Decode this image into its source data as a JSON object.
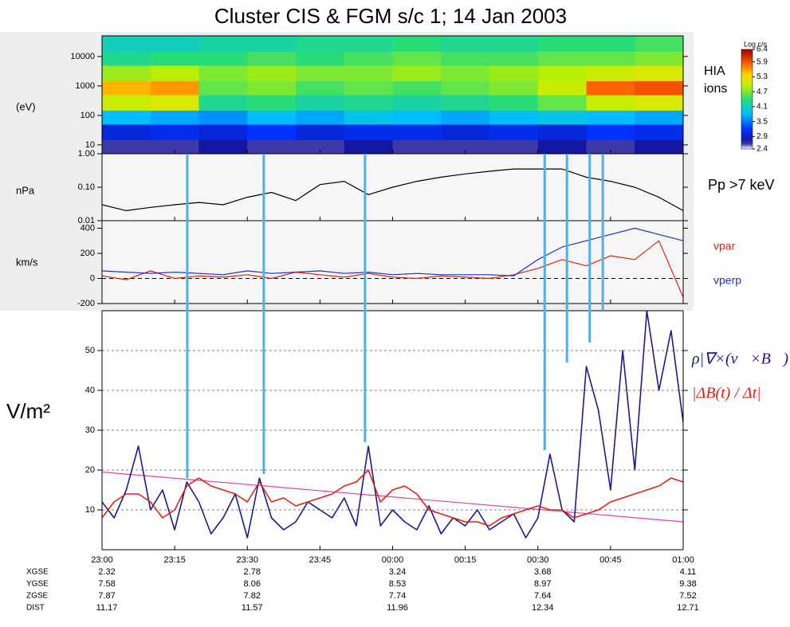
{
  "title": "Cluster CIS & FGM s/c 1; 14 Jan 2003",
  "x_axis": {
    "xlim": [
      0,
      120
    ],
    "xticks": [
      {
        "value": 0,
        "label": "23:00"
      },
      {
        "value": 15,
        "label": "23:15"
      },
      {
        "value": 30,
        "label": "23:30"
      },
      {
        "value": 45,
        "label": "23:45"
      },
      {
        "value": 60,
        "label": "00:00"
      },
      {
        "value": 75,
        "label": "00:15"
      },
      {
        "value": 90,
        "label": "00:30"
      },
      {
        "value": 105,
        "label": "00:45"
      },
      {
        "value": 120,
        "label": "01:00"
      }
    ]
  },
  "chart_data": [
    {
      "type": "heatmap",
      "ylabel": "(eV)",
      "yscale": "log",
      "ylim": [
        5,
        50000
      ],
      "yticks": [
        10,
        100,
        1000,
        10000
      ],
      "annotation": [
        "HIA",
        "ions"
      ],
      "x_edges": [
        0,
        10,
        20,
        30,
        40,
        50,
        60,
        70,
        80,
        90,
        100,
        110,
        120
      ],
      "y_edges": [
        5,
        15,
        50,
        150,
        500,
        1500,
        5000,
        15000,
        50000
      ],
      "values": [
        [
          2.6,
          2.6,
          2.7,
          2.6,
          2.6,
          2.7,
          2.6,
          2.6,
          2.6,
          2.7,
          2.6,
          2.7
        ],
        [
          3.0,
          3.1,
          3.0,
          3.2,
          3.0,
          3.1,
          3.1,
          3.0,
          3.1,
          3.0,
          3.2,
          3.1
        ],
        [
          3.8,
          3.7,
          3.6,
          3.8,
          3.7,
          3.9,
          3.8,
          3.7,
          3.8,
          3.9,
          3.8,
          3.7
        ],
        [
          5.0,
          5.1,
          4.3,
          4.4,
          4.2,
          4.3,
          4.2,
          4.3,
          4.4,
          4.6,
          5.0,
          5.1
        ],
        [
          5.5,
          5.6,
          4.6,
          4.7,
          4.5,
          4.6,
          4.5,
          4.6,
          4.7,
          5.0,
          5.8,
          5.9
        ],
        [
          4.8,
          4.9,
          4.7,
          4.8,
          4.7,
          4.7,
          4.8,
          4.7,
          4.8,
          4.9,
          5.0,
          5.1
        ],
        [
          4.3,
          4.4,
          4.4,
          4.5,
          4.4,
          4.5,
          4.6,
          4.5,
          4.5,
          4.6,
          4.6,
          4.7
        ],
        [
          4.1,
          4.1,
          4.2,
          4.2,
          4.3,
          4.3,
          4.4,
          4.3,
          4.3,
          4.4,
          4.4,
          4.5
        ]
      ],
      "colorbar": {
        "label": "Log c/s",
        "clim": [
          2.4,
          6.4
        ],
        "ticks": [
          6.4,
          5.9,
          5.3,
          4.7,
          4.1,
          3.5,
          2.9,
          2.4
        ]
      }
    },
    {
      "type": "line",
      "ylabel": "nPa",
      "yscale": "log",
      "ylim": [
        0.01,
        1
      ],
      "yticks": [
        {
          "value": 1,
          "label": "1.00"
        },
        {
          "value": 0.1,
          "label": "0.10"
        },
        {
          "value": 0.01,
          "label": "0.01"
        }
      ],
      "annotation": [
        "Pp >7 keV"
      ],
      "series": [
        {
          "color": "#000000",
          "x": [
            0,
            5,
            10,
            15,
            20,
            25,
            30,
            35,
            40,
            45,
            50,
            55,
            60,
            65,
            70,
            75,
            80,
            85,
            90,
            95,
            100,
            105,
            110,
            115,
            120
          ],
          "values": [
            0.03,
            0.02,
            0.025,
            0.03,
            0.035,
            0.03,
            0.05,
            0.07,
            0.04,
            0.12,
            0.15,
            0.06,
            0.1,
            0.15,
            0.2,
            0.25,
            0.3,
            0.35,
            0.35,
            0.35,
            0.2,
            0.15,
            0.1,
            0.05,
            0.02
          ]
        }
      ]
    },
    {
      "type": "line",
      "ylabel": "km/s",
      "ylim": [
        -200,
        460
      ],
      "yticks": [
        -200,
        0,
        200,
        400
      ],
      "reference_line": 0,
      "series": [
        {
          "name": "vpar",
          "color": "#e02010",
          "x": [
            0,
            5,
            10,
            15,
            20,
            25,
            30,
            35,
            40,
            45,
            50,
            55,
            60,
            65,
            70,
            75,
            80,
            85,
            90,
            95,
            100,
            105,
            110,
            115,
            120
          ],
          "values": [
            20,
            -10,
            60,
            0,
            20,
            10,
            30,
            0,
            50,
            30,
            10,
            40,
            10,
            0,
            20,
            10,
            0,
            30,
            80,
            150,
            100,
            180,
            150,
            300,
            -150
          ]
        },
        {
          "name": "vperp",
          "color": "#2030c0",
          "x": [
            0,
            5,
            10,
            15,
            20,
            25,
            30,
            35,
            40,
            45,
            50,
            55,
            60,
            65,
            70,
            75,
            80,
            85,
            90,
            95,
            100,
            105,
            110,
            115,
            120
          ],
          "values": [
            60,
            50,
            40,
            50,
            40,
            30,
            60,
            40,
            50,
            60,
            40,
            50,
            30,
            40,
            30,
            30,
            30,
            20,
            150,
            250,
            300,
            350,
            400,
            350,
            300
          ]
        }
      ]
    },
    {
      "type": "line",
      "ylabel": "V/m²",
      "ylim": [
        0,
        60
      ],
      "yticks": [
        10,
        20,
        30,
        40,
        50
      ],
      "grid": true,
      "series": [
        {
          "name": "ρ|∇×(v⃗×B⃗)|",
          "color": "#1a1a90",
          "x": [
            0,
            2.5,
            5,
            7.5,
            10,
            12.5,
            15,
            17.5,
            20,
            22.5,
            25,
            27.5,
            30,
            32.5,
            35,
            37.5,
            40,
            42.5,
            45,
            47.5,
            50,
            52.5,
            55,
            57.5,
            60,
            62.5,
            65,
            67.5,
            70,
            72.5,
            75,
            77.5,
            80,
            82.5,
            85,
            87.5,
            90,
            92.5,
            95,
            97.5,
            100,
            102.5,
            105,
            107.5,
            110,
            112.5,
            115,
            117.5,
            120
          ],
          "values": [
            12,
            8,
            15,
            26,
            10,
            15,
            5,
            17,
            12,
            4,
            8,
            14,
            3,
            18,
            8,
            5,
            7,
            12,
            10,
            8,
            13,
            6,
            26,
            6,
            10,
            7,
            5,
            11,
            4,
            8,
            6,
            10,
            5,
            7,
            9,
            3,
            8,
            24,
            10,
            7,
            46,
            35,
            15,
            50,
            20,
            60,
            40,
            55,
            32
          ]
        },
        {
          "name": "|ΔB(t) / Δt|",
          "color": "#e02010",
          "x": [
            0,
            2.5,
            5,
            7.5,
            10,
            12.5,
            15,
            17.5,
            20,
            22.5,
            25,
            27.5,
            30,
            32.5,
            35,
            37.5,
            40,
            42.5,
            45,
            47.5,
            50,
            52.5,
            55,
            57.5,
            60,
            62.5,
            65,
            67.5,
            70,
            72.5,
            75,
            77.5,
            80,
            82.5,
            85,
            87.5,
            90,
            92.5,
            95,
            97.5,
            100,
            102.5,
            105,
            107.5,
            110,
            112.5,
            115,
            117.5,
            120
          ],
          "values": [
            8,
            12,
            14,
            14,
            12,
            8,
            10,
            16,
            18,
            16,
            15,
            14,
            12,
            17,
            12,
            13,
            11,
            12,
            13,
            14,
            16,
            17,
            20,
            12,
            15,
            16,
            14,
            10,
            9,
            8,
            7,
            7,
            6,
            8,
            9,
            10,
            11,
            10,
            10,
            8,
            9,
            10,
            12,
            13,
            14,
            15,
            16,
            18,
            17
          ]
        }
      ],
      "trend_line": {
        "color": "#e040a0",
        "x": [
          0,
          120
        ],
        "values": [
          19.5,
          7
        ]
      }
    }
  ],
  "event_lines": {
    "color": "#4fb0e6",
    "x": [
      17.6,
      33.4,
      54.3,
      91.4,
      96,
      100.7,
      103.4
    ],
    "y_end": [
      18,
      19,
      27,
      25,
      47,
      52,
      60
    ]
  },
  "ephemeris": {
    "x": [
      0,
      30,
      60,
      90,
      120
    ],
    "rows": [
      {
        "name": "XGSE",
        "values": [
          2.32,
          2.78,
          3.24,
          3.68,
          4.11
        ]
      },
      {
        "name": "YGSE",
        "values": [
          7.58,
          8.06,
          8.53,
          8.97,
          9.38
        ]
      },
      {
        "name": "ZGSE",
        "values": [
          7.87,
          7.82,
          7.74,
          7.64,
          7.52
        ]
      },
      {
        "name": "DIST",
        "values": [
          11.17,
          11.57,
          11.96,
          12.34,
          12.71
        ]
      }
    ]
  }
}
